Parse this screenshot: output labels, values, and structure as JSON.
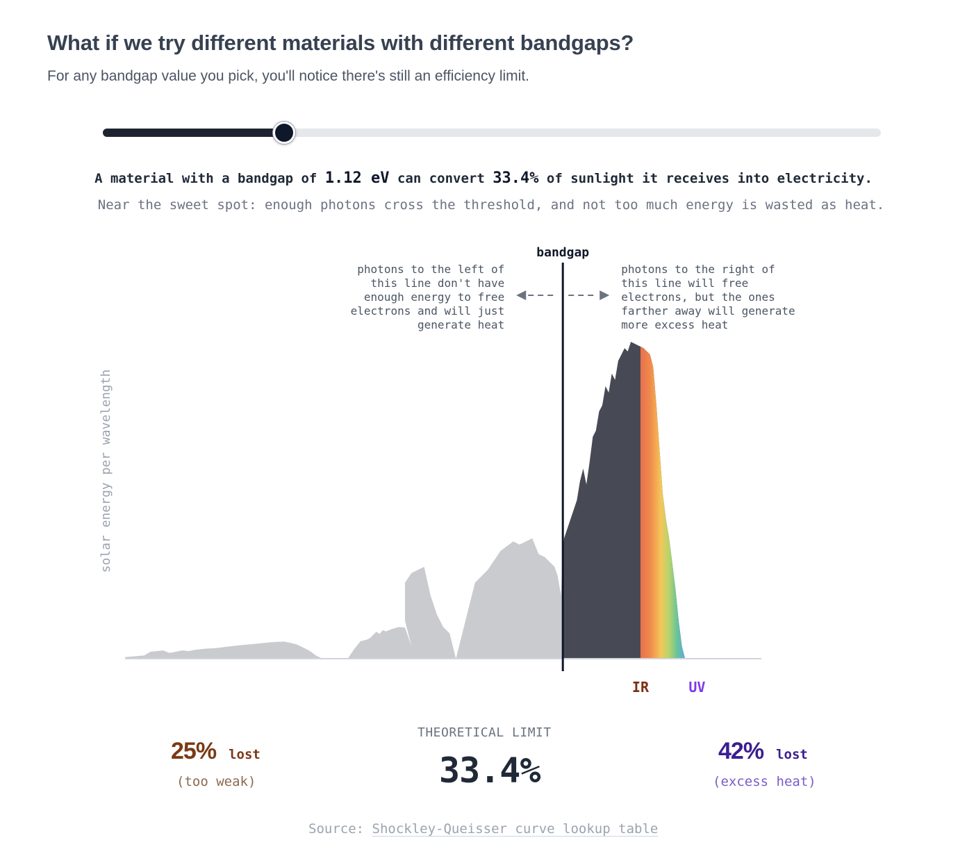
{
  "header": {
    "title": "What if we try different materials with different bandgaps?",
    "subtitle": "For any bandgap value you pick, you'll notice there's still an efficiency limit."
  },
  "slider": {
    "fraction": 0.233
  },
  "statement": {
    "prefix": "A material with a bandgap of ",
    "bandgap": "1.12 eV",
    "middle": " can convert ",
    "efficiency": "33.4%",
    "suffix": " of sunlight it receives into electricity.",
    "detail": "Near the sweet spot: enough photons cross the threshold, and not too much energy is wasted as heat."
  },
  "colors": {
    "below": "#cacbcf",
    "above": "#474a55",
    "marker": "#0f172a",
    "lost_weak": "#7a3a14",
    "lost_heat": "#3b1e8f",
    "ir_label": "#7a2e14",
    "uv_label": "#7c3aed"
  },
  "chart_data": {
    "type": "area",
    "ylabel": "solar energy per wavelength",
    "bandgap_label": "bandgap",
    "bandgap_fraction": 0.688,
    "left_annotation": [
      "photons to the left of",
      "this line don't have",
      "enough energy to free",
      "electrons and will just",
      "generate heat"
    ],
    "right_annotation": [
      "photons to the right of",
      "this line will free",
      "electrons, but the ones",
      "farther away will generate",
      "more excess heat"
    ],
    "visible_band_labels": [
      "IR",
      "UV"
    ],
    "visible_band_fraction": [
      0.81,
      0.9
    ],
    "x": [
      0,
      0.03,
      0.04,
      0.06,
      0.07,
      0.09,
      0.1,
      0.11,
      0.12,
      0.13,
      0.14,
      0.15,
      0.16,
      0.17,
      0.18,
      0.19,
      0.2,
      0.21,
      0.22,
      0.23,
      0.24,
      0.25,
      0.26,
      0.27,
      0.28,
      0.29,
      0.3,
      0.31,
      0.32,
      0.33,
      0.34,
      0.35,
      0.36,
      0.37,
      0.38,
      0.385,
      0.39,
      0.395,
      0.4,
      0.405,
      0.41,
      0.42,
      0.43,
      0.44,
      0.45,
      0.44,
      0.44,
      0.44,
      0.45,
      0.46,
      0.47,
      0.48,
      0.49,
      0.5,
      0.51,
      0.52,
      0.53,
      0.54,
      0.55,
      0.56,
      0.57,
      0.58,
      0.59,
      0.6,
      0.61,
      0.62,
      0.63,
      0.64,
      0.65,
      0.66,
      0.67,
      0.675,
      0.68,
      0.685,
      0.688,
      0.69,
      0.7,
      0.71,
      0.715,
      0.72,
      0.725,
      0.73,
      0.735,
      0.74,
      0.745,
      0.75,
      0.755,
      0.76,
      0.765,
      0.77,
      0.775,
      0.78,
      0.785,
      0.79,
      0.795,
      0.8,
      0.805,
      0.81,
      0.815,
      0.82,
      0.825,
      0.83,
      0.835,
      0.84,
      0.845,
      0.85,
      0.855,
      0.86,
      0.865,
      0.87,
      0.875,
      0.88,
      0.885,
      0.89,
      0.895,
      0.9,
      0.905,
      0.91,
      0.915,
      0.92,
      1.0
    ],
    "y": [
      0.005,
      0.01,
      0.022,
      0.026,
      0.018,
      0.026,
      0.024,
      0.028,
      0.03,
      0.032,
      0.033,
      0.035,
      0.038,
      0.04,
      0.042,
      0.044,
      0.046,
      0.048,
      0.05,
      0.052,
      0.053,
      0.054,
      0.05,
      0.045,
      0.035,
      0.025,
      0.01,
      0.0,
      0.0,
      0.0,
      0.0,
      0.0,
      0.03,
      0.055,
      0.06,
      0.065,
      0.075,
      0.085,
      0.078,
      0.09,
      0.086,
      0.094,
      0.1,
      0.098,
      0.04,
      0.12,
      0.22,
      0.24,
      0.27,
      0.28,
      0.29,
      0.2,
      0.14,
      0.1,
      0.08,
      0.0,
      0.08,
      0.16,
      0.24,
      0.26,
      0.28,
      0.31,
      0.34,
      0.355,
      0.37,
      0.36,
      0.37,
      0.38,
      0.33,
      0.32,
      0.3,
      0.29,
      0.26,
      0.2,
      0.34,
      0.38,
      0.44,
      0.5,
      0.56,
      0.6,
      0.55,
      0.62,
      0.7,
      0.72,
      0.78,
      0.8,
      0.86,
      0.84,
      0.9,
      0.88,
      0.94,
      0.96,
      0.98,
      0.97,
      1.0,
      0.995,
      0.99,
      0.985,
      0.98,
      0.97,
      0.96,
      0.92,
      0.8,
      0.66,
      0.52,
      0.44,
      0.38,
      0.3,
      0.22,
      0.12,
      0.04,
      0.0,
      0.0,
      0.0,
      0.0,
      0.0,
      0.0,
      0.0,
      0.0,
      0.0,
      0.0
    ],
    "area_below_bandgap_percent": "25%",
    "area_above_bandgap_percent": "42%"
  },
  "results": {
    "lost_weak_value": "25%",
    "lost_weak_word": "lost",
    "lost_weak_note": "(too weak)",
    "limit_label": "THEORETICAL LIMIT",
    "limit_value": "33.4%",
    "lost_heat_value": "42%",
    "lost_heat_word": "lost",
    "lost_heat_note": "(excess heat)"
  },
  "footer": {
    "source_prefix": "Source: ",
    "source_link": "Shockley-Queisser curve lookup table"
  }
}
